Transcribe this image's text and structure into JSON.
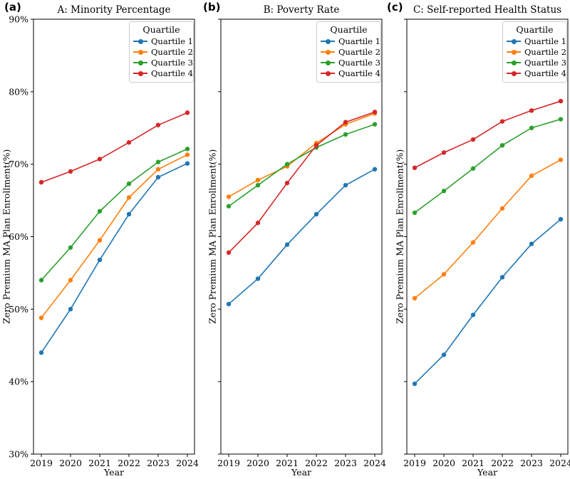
{
  "figure": {
    "panel_labels": [
      "(a)",
      "(b)",
      "(c)"
    ],
    "xlabel": "Year",
    "ylabel": "Zero Premium MA Plan Enrollment(%)",
    "legend_title": "Quartile",
    "colors": {
      "quartile_1": "#1f77b4",
      "quartile_2": "#ff7f0e",
      "quartile_3": "#2ca02c",
      "quartile_4": "#d62728",
      "spine": "#000000",
      "text": "#000000",
      "legend_border": "#cccccc"
    }
  },
  "chart_data": [
    {
      "type": "line",
      "panel_label": "(a)",
      "title": "A: Minority Percentage",
      "xlabel": "Year",
      "ylabel": "Zero Premium MA Plan Enrollment(%)",
      "x": [
        2019,
        2020,
        2021,
        2022,
        2023,
        2024
      ],
      "ylim": [
        30,
        90
      ],
      "yticks": [
        30,
        40,
        50,
        60,
        70,
        80,
        90
      ],
      "ytick_suffix": "%",
      "show_ytick_labels": true,
      "grid": false,
      "legend": {
        "title": "Quartile",
        "position": "upper right"
      },
      "series": [
        {
          "name": "Quartile 1",
          "color": "#1f77b4",
          "values": [
            44.0,
            50.0,
            56.8,
            63.1,
            68.2,
            70.1
          ]
        },
        {
          "name": "Quartile 2",
          "color": "#ff7f0e",
          "values": [
            48.8,
            54.0,
            59.5,
            65.4,
            69.3,
            71.3
          ]
        },
        {
          "name": "Quartile 3",
          "color": "#2ca02c",
          "values": [
            54.0,
            58.5,
            63.5,
            67.3,
            70.3,
            72.1
          ]
        },
        {
          "name": "Quartile 4",
          "color": "#d62728",
          "values": [
            67.5,
            69.0,
            70.7,
            73.0,
            75.4,
            77.1
          ]
        }
      ]
    },
    {
      "type": "line",
      "panel_label": "(b)",
      "title": "B: Poverty Rate",
      "xlabel": "Year",
      "ylabel": "Zero Premium MA Plan Enrollment(%)",
      "x": [
        2019,
        2020,
        2021,
        2022,
        2023,
        2024
      ],
      "ylim": [
        30,
        90
      ],
      "yticks": [
        30,
        40,
        50,
        60,
        70,
        80,
        90
      ],
      "ytick_suffix": "%",
      "show_ytick_labels": false,
      "grid": false,
      "legend": {
        "title": "Quartile",
        "position": "upper right"
      },
      "series": [
        {
          "name": "Quartile 1",
          "color": "#1f77b4",
          "values": [
            50.7,
            54.2,
            58.9,
            63.1,
            67.1,
            69.3
          ]
        },
        {
          "name": "Quartile 2",
          "color": "#ff7f0e",
          "values": [
            65.5,
            67.8,
            69.7,
            72.9,
            75.5,
            77.0
          ]
        },
        {
          "name": "Quartile 3",
          "color": "#2ca02c",
          "values": [
            64.2,
            67.1,
            70.0,
            72.3,
            74.1,
            75.5
          ]
        },
        {
          "name": "Quartile 4",
          "color": "#d62728",
          "values": [
            57.8,
            61.9,
            67.4,
            72.6,
            75.8,
            77.2
          ]
        }
      ]
    },
    {
      "type": "line",
      "panel_label": "(c)",
      "title": "C: Self-reported Health Status",
      "xlabel": "Year",
      "ylabel": "Zero Premium MA Plan Enrollment(%)",
      "x": [
        2019,
        2020,
        2021,
        2022,
        2023,
        2024
      ],
      "ylim": [
        30,
        90
      ],
      "yticks": [
        30,
        40,
        50,
        60,
        70,
        80,
        90
      ],
      "ytick_suffix": "%",
      "show_ytick_labels": false,
      "grid": false,
      "legend": {
        "title": "Quartile",
        "position": "upper right"
      },
      "series": [
        {
          "name": "Quartile 1",
          "color": "#1f77b4",
          "values": [
            39.7,
            43.7,
            49.2,
            54.4,
            59.0,
            62.4
          ]
        },
        {
          "name": "Quartile 2",
          "color": "#ff7f0e",
          "values": [
            51.5,
            54.8,
            59.2,
            63.9,
            68.4,
            70.6
          ]
        },
        {
          "name": "Quartile 3",
          "color": "#2ca02c",
          "values": [
            63.3,
            66.3,
            69.4,
            72.6,
            75.0,
            76.2
          ]
        },
        {
          "name": "Quartile 4",
          "color": "#d62728",
          "values": [
            69.5,
            71.6,
            73.4,
            75.9,
            77.4,
            78.7
          ]
        }
      ]
    }
  ]
}
